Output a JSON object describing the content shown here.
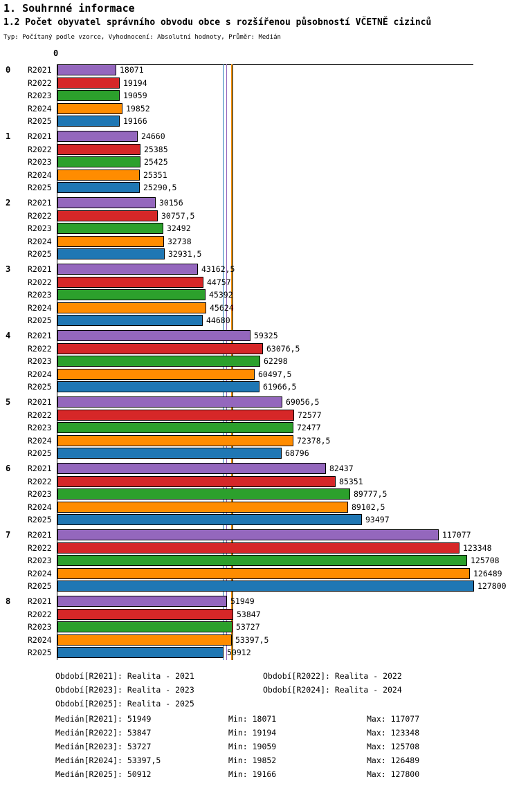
{
  "header": {
    "title": "1. Souhrnné informace",
    "subtitle": "1.2 Počet obyvatel správního obvodu obce s rozšířenou působností VČETNĚ cizinců",
    "meta": "Typ: Počítaný podle vzorce, Vyhodnocení: Absolutní hodnoty, Průměr: Medián"
  },
  "chart_data": {
    "type": "bar",
    "orientation": "horizontal",
    "title": "1.2 Počet obyvatel správního obvodu obce s rozšířenou působností VČETNĚ cizinců",
    "axis_origin_label": "0",
    "xlim": [
      0,
      127800
    ],
    "grid": false,
    "group_labels": [
      "0",
      "1",
      "2",
      "3",
      "4",
      "5",
      "6",
      "7",
      "8"
    ],
    "series": [
      {
        "name": "R2021",
        "color": "#9467bd",
        "values": [
          18071,
          24660,
          30156,
          43162.5,
          59325,
          69056.5,
          82437,
          117077,
          51949
        ],
        "value_labels": [
          "18071",
          "24660",
          "30156",
          "43162,5",
          "59325",
          "69056,5",
          "82437",
          "117077",
          "51949"
        ],
        "median": 51949,
        "median_label": "51949"
      },
      {
        "name": "R2022",
        "color": "#d62728",
        "values": [
          19194,
          25385,
          30757.5,
          44757,
          63076.5,
          72577,
          85351,
          123348,
          53847
        ],
        "value_labels": [
          "19194",
          "25385",
          "30757,5",
          "44757",
          "63076,5",
          "72577",
          "85351",
          "123348",
          "53847"
        ],
        "median": 53847,
        "median_label": "53847"
      },
      {
        "name": "R2023",
        "color": "#2ca02c",
        "values": [
          19059,
          25425,
          32492,
          45392,
          62298,
          72477,
          89777.5,
          125708,
          53727
        ],
        "value_labels": [
          "19059",
          "25425",
          "32492",
          "45392",
          "62298",
          "72477",
          "89777,5",
          "125708",
          "53727"
        ],
        "median": 53727,
        "median_label": "53727"
      },
      {
        "name": "R2024",
        "color": "#ff8c00",
        "values": [
          19852,
          25351,
          32738,
          45624,
          60497.5,
          72378.5,
          89102.5,
          126489,
          53397.5
        ],
        "value_labels": [
          "19852",
          "25351",
          "32738",
          "45624",
          "60497,5",
          "72378,5",
          "89102,5",
          "126489",
          "53397,5"
        ],
        "median": 53397.5,
        "median_label": "53397,5"
      },
      {
        "name": "R2025",
        "color": "#1f77b4",
        "values": [
          19166,
          25290.5,
          32931.5,
          44680,
          61966.5,
          68796,
          93497,
          127800,
          50912
        ],
        "value_labels": [
          "19166",
          "25290,5",
          "32931,5",
          "44680",
          "61966,5",
          "68796",
          "93497",
          "127800",
          "50912"
        ],
        "median": 50912,
        "median_label": "50912"
      }
    ]
  },
  "legend": {
    "items": [
      "Období[R2021]: Realita - 2021",
      "Období[R2022]: Realita - 2022",
      "Období[R2023]: Realita - 2023",
      "Období[R2024]: Realita - 2024",
      "Období[R2025]: Realita - 2025"
    ]
  },
  "stats": {
    "rows": [
      {
        "median": "Medián[R2021]: 51949",
        "min": "Min: 18071",
        "max": "Max: 117077"
      },
      {
        "median": "Medián[R2022]: 53847",
        "min": "Min: 19194",
        "max": "Max: 123348"
      },
      {
        "median": "Medián[R2023]: 53727",
        "min": "Min: 19059",
        "max": "Max: 125708"
      },
      {
        "median": "Medián[R2024]: 53397,5",
        "min": "Min: 19852",
        "max": "Max: 126489"
      },
      {
        "median": "Medián[R2025]: 50912",
        "min": "Min: 19166",
        "max": "Max: 127800"
      }
    ]
  }
}
